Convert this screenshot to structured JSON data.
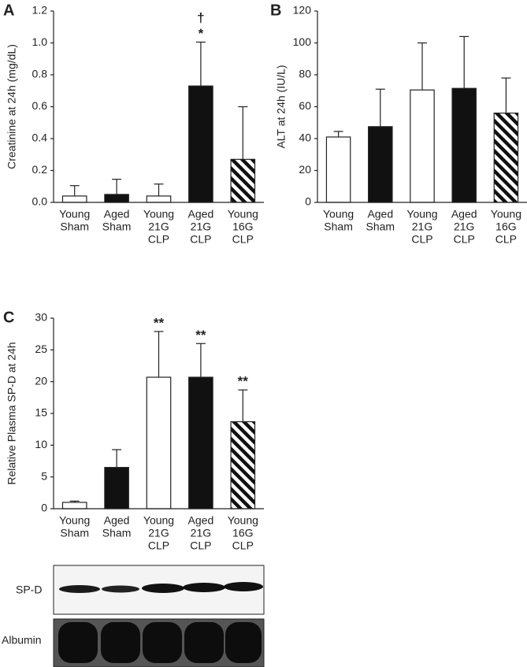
{
  "chart_data": [
    {
      "type": "bar",
      "panel": "A",
      "ylabel": "Creatinine at 24h (mg/dL)",
      "categories": [
        [
          "Young",
          "Sham"
        ],
        [
          "Aged",
          "Sham"
        ],
        [
          "Young",
          "21G",
          "CLP"
        ],
        [
          "Aged",
          "21G",
          "CLP"
        ],
        [
          "Young",
          "16G",
          "CLP"
        ]
      ],
      "values": [
        0.04,
        0.05,
        0.04,
        0.73,
        0.27
      ],
      "errors": [
        0.065,
        0.095,
        0.075,
        0.275,
        0.33
      ],
      "colors": [
        "#ffffff",
        "#111111",
        "#ffffff",
        "#111111",
        "#ffffff"
      ],
      "hatch": [
        false,
        false,
        false,
        false,
        true
      ],
      "markers": [
        null,
        null,
        null,
        [
          "†",
          "*"
        ],
        null
      ],
      "ylim": [
        0,
        1.2
      ],
      "yticks": [
        {
          "value": 0,
          "label": "0.0"
        },
        0.2,
        0.4,
        0.6,
        0.8,
        {
          "value": 1,
          "label": "1.0"
        },
        1.2
      ]
    },
    {
      "type": "bar",
      "panel": "B",
      "ylabel": "ALT at 24h (IU/L)",
      "categories": [
        [
          "Young",
          "Sham"
        ],
        [
          "Aged",
          "Sham"
        ],
        [
          "Young",
          "21G",
          "CLP"
        ],
        [
          "Aged",
          "21G",
          "CLP"
        ],
        [
          "Young",
          "16G",
          "CLP"
        ]
      ],
      "values": [
        41,
        47.5,
        70.5,
        71.5,
        56
      ],
      "errors": [
        3.5,
        23.5,
        29.5,
        32.5,
        22
      ],
      "colors": [
        "#ffffff",
        "#111111",
        "#ffffff",
        "#111111",
        "#ffffff"
      ],
      "hatch": [
        false,
        false,
        false,
        false,
        true
      ],
      "markers": [
        null,
        null,
        null,
        null,
        null
      ],
      "ylim": [
        0,
        120
      ],
      "yticks": [
        0,
        20,
        40,
        60,
        80,
        100,
        120
      ]
    },
    {
      "type": "bar",
      "panel": "C",
      "ylabel": "Relative Plasma SP-D at 24h",
      "categories": [
        [
          "Young",
          "Sham"
        ],
        [
          "Aged",
          "Sham"
        ],
        [
          "Young",
          "21G",
          "CLP"
        ],
        [
          "Aged",
          "21G",
          "CLP"
        ],
        [
          "Young",
          "16G",
          "CLP"
        ]
      ],
      "values": [
        1,
        6.5,
        20.7,
        20.7,
        13.7
      ],
      "errors": [
        0.2,
        2.8,
        7.2,
        5.3,
        5.0
      ],
      "colors": [
        "#ffffff",
        "#111111",
        "#ffffff",
        "#111111",
        "#ffffff"
      ],
      "hatch": [
        false,
        false,
        false,
        false,
        true
      ],
      "markers": [
        null,
        null,
        [
          "**"
        ],
        [
          "**"
        ],
        [
          "**"
        ]
      ],
      "ylim": [
        0,
        30
      ],
      "yticks": [
        0,
        5,
        10,
        15,
        20,
        25,
        30
      ]
    }
  ],
  "blot": {
    "rows": [
      "SP-D",
      "Albumin"
    ]
  }
}
